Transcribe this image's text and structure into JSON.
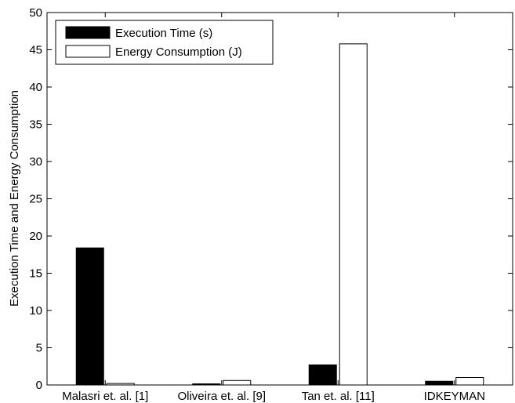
{
  "chart_data": {
    "type": "bar",
    "categories": [
      "Malasri et. al. [1]",
      "Oliveira et. al. [9]",
      "Tan et. al. [11]",
      "IDKEYMAN"
    ],
    "series": [
      {
        "name": "Execution Time (s)",
        "values": [
          18.4,
          0.15,
          2.7,
          0.5
        ],
        "color": "#000000"
      },
      {
        "name": "Energy Consumption (J)",
        "values": [
          0.2,
          0.6,
          45.8,
          1.0
        ],
        "color": "#ffffff"
      }
    ],
    "title": "",
    "xlabel": "",
    "ylabel": "Execution Time and Energy Consumption",
    "ylim": [
      0,
      50
    ],
    "yticks": [
      0,
      5,
      10,
      15,
      20,
      25,
      30,
      35,
      40,
      45,
      50
    ],
    "grid": false,
    "legend_position": "top-left"
  }
}
